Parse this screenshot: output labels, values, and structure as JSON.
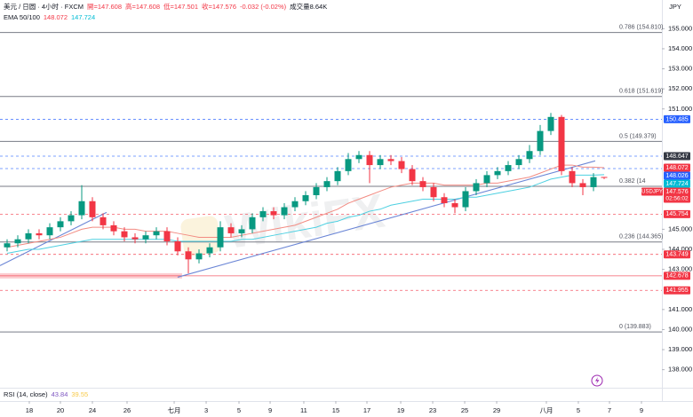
{
  "chart_data": {
    "type": "candlestick",
    "header": {
      "symbol": "美元 / 日圆 · 4小时 · FXCM",
      "stats": [
        "開=147.608",
        "高=147.608",
        "低=147.501",
        "收=147.576",
        "-0.032 (-0.02%)",
        "成交量8.64K"
      ]
    },
    "indicator_label": "EMA 50/100",
    "axis_unit": "JPY",
    "countdown": "02:56:02",
    "symbol_tag": "USDJPY",
    "watermark": "WikiFX",
    "rsi": {
      "label": "RSI (14, close)",
      "values": [
        43.84,
        39.55
      ],
      "colors": [
        "#7e57c2",
        "#f7c948"
      ]
    },
    "up_color": "#089981",
    "down_color": "#f23645",
    "candles": {
      "x": [
        0,
        1,
        2,
        3,
        4,
        5,
        6,
        7,
        8,
        9,
        10,
        11,
        12,
        13,
        14,
        15,
        16,
        17,
        18,
        19,
        20,
        21,
        22,
        23,
        24,
        25,
        26,
        27,
        28,
        29,
        30,
        31,
        32,
        33,
        34,
        35,
        36,
        37,
        38,
        39,
        40,
        41,
        42,
        43,
        44,
        45,
        46,
        47,
        48,
        49,
        50,
        51,
        52,
        53,
        54,
        55,
        56
      ],
      "open": [
        144.1,
        144.3,
        144.5,
        144.8,
        144.7,
        145.1,
        145.4,
        145.7,
        146.4,
        145.6,
        145.2,
        144.9,
        144.6,
        144.5,
        144.7,
        144.9,
        144.4,
        143.9,
        143.5,
        143.8,
        144.1,
        145.1,
        144.8,
        145.0,
        145.6,
        145.9,
        145.7,
        146.1,
        146.4,
        146.7,
        147.1,
        147.4,
        147.9,
        148.5,
        148.7,
        148.2,
        148.5,
        148.4,
        148.0,
        147.4,
        147.1,
        146.6,
        146.3,
        146.1,
        146.9,
        147.3,
        147.7,
        147.9,
        148.2,
        148.5,
        148.9,
        149.9,
        150.6,
        147.9,
        147.3,
        147.1,
        147.608
      ],
      "high": [
        144.5,
        144.7,
        145.0,
        145.0,
        145.3,
        145.6,
        145.9,
        147.2,
        146.6,
        145.8,
        145.4,
        145.1,
        144.8,
        144.9,
        145.1,
        145.1,
        144.6,
        144.1,
        144.0,
        144.3,
        145.4,
        145.3,
        145.2,
        145.8,
        146.1,
        146.1,
        146.3,
        146.6,
        146.9,
        147.3,
        147.6,
        148.1,
        148.8,
        148.9,
        148.9,
        148.7,
        148.7,
        148.6,
        148.2,
        147.6,
        147.3,
        146.8,
        146.5,
        147.1,
        147.5,
        147.9,
        148.1,
        148.4,
        148.7,
        149.2,
        150.2,
        150.8,
        150.7,
        148.1,
        147.5,
        147.8,
        147.608
      ],
      "low": [
        143.9,
        144.1,
        144.3,
        144.5,
        144.5,
        144.9,
        145.2,
        145.5,
        145.4,
        145.0,
        144.7,
        144.4,
        144.3,
        144.3,
        144.5,
        144.2,
        143.7,
        142.8,
        143.3,
        143.6,
        143.9,
        144.6,
        144.6,
        144.8,
        145.4,
        145.5,
        145.5,
        145.9,
        146.2,
        146.5,
        146.9,
        147.2,
        147.7,
        148.3,
        147.3,
        148.0,
        148.2,
        147.8,
        147.2,
        146.9,
        146.4,
        146.1,
        145.8,
        145.9,
        146.7,
        147.1,
        147.5,
        147.7,
        148.0,
        148.3,
        148.7,
        149.7,
        147.7,
        147.1,
        146.7,
        146.9,
        147.501
      ],
      "close": [
        144.3,
        144.5,
        144.8,
        144.7,
        145.1,
        145.4,
        145.7,
        146.4,
        145.6,
        145.2,
        144.9,
        144.6,
        144.5,
        144.7,
        144.9,
        144.4,
        143.9,
        143.5,
        143.8,
        144.1,
        145.1,
        144.8,
        145.0,
        145.6,
        145.9,
        145.7,
        146.1,
        146.4,
        146.7,
        147.1,
        147.4,
        147.9,
        148.5,
        148.7,
        148.2,
        148.5,
        148.4,
        148.0,
        147.4,
        147.1,
        146.6,
        146.3,
        146.1,
        146.9,
        147.3,
        147.7,
        147.9,
        148.2,
        148.5,
        148.9,
        149.9,
        150.6,
        147.9,
        147.3,
        147.1,
        147.6,
        147.576
      ]
    },
    "series": [
      {
        "color": "#f28b82",
        "values": [
          144.1,
          144.2,
          144.3,
          144.4,
          144.5,
          144.6,
          144.8,
          145.0,
          145.1,
          145.1,
          145.1,
          145.0,
          145.0,
          144.9,
          144.9,
          144.9,
          144.8,
          144.7,
          144.6,
          144.6,
          144.6,
          144.6,
          144.7,
          144.8,
          144.9,
          145.0,
          145.1,
          145.2,
          145.4,
          145.6,
          145.8,
          146.0,
          146.3,
          146.5,
          146.7,
          146.9,
          147.1,
          147.2,
          147.3,
          147.3,
          147.3,
          147.2,
          147.2,
          147.2,
          147.2,
          147.3,
          147.3,
          147.4,
          147.5,
          147.6,
          147.8,
          148.0,
          148.2,
          148.2,
          148.1,
          148.1,
          148.072
        ]
      },
      {
        "color": "#4dd0e1",
        "values": [
          143.8,
          143.9,
          144.0,
          144.0,
          144.1,
          144.2,
          144.3,
          144.4,
          144.5,
          144.5,
          144.5,
          144.5,
          144.5,
          144.5,
          144.5,
          144.5,
          144.4,
          144.4,
          144.4,
          144.4,
          144.4,
          144.4,
          144.5,
          144.5,
          144.6,
          144.7,
          144.8,
          144.9,
          145.0,
          145.1,
          145.3,
          145.4,
          145.6,
          145.7,
          145.9,
          146.0,
          146.2,
          146.3,
          146.4,
          146.5,
          146.5,
          146.5,
          146.5,
          146.6,
          146.6,
          146.7,
          146.8,
          146.9,
          147.0,
          147.1,
          147.3,
          147.5,
          147.6,
          147.7,
          147.7,
          147.7,
          147.724
        ]
      }
    ],
    "fib_levels": [
      {
        "value": 154.81,
        "label": "0.786 (154.810)"
      },
      {
        "value": 151.619,
        "label": "0.618 (151.619)"
      },
      {
        "value": 149.379,
        "label": "0.5 (149.379)"
      },
      {
        "value": 147.14,
        "label": "0.382 (14"
      },
      {
        "value": 144.365,
        "label": "0.236 (144.365)"
      },
      {
        "value": 139.883,
        "label": "0 (139.883)"
      }
    ],
    "price_lines": [
      {
        "value": 150.485,
        "color": "#2962ff",
        "dash": true,
        "band": false
      },
      {
        "value": 148.647,
        "color": "#2962ff",
        "dash": true,
        "band": false,
        "label_color": "#363a45"
      },
      {
        "value": 148.026,
        "color": "#2962ff",
        "dash": true,
        "band": false
      },
      {
        "value": 145.754,
        "color": "#f23645",
        "dash": true,
        "band": false
      },
      {
        "value": 143.749,
        "color": "#f23645",
        "dash": true,
        "band": false
      },
      {
        "value": 142.678,
        "color": "#f23645",
        "dash": false,
        "band": true
      },
      {
        "value": 141.955,
        "color": "#f23645",
        "dash": true,
        "band": false
      }
    ],
    "trendlines": [
      {
        "color": "#6b86d6",
        "x": [
          -0.67,
          9.33
        ],
        "y": [
          143.19,
          145.84
        ]
      },
      {
        "color": "#6b86d6",
        "x": [
          15.99,
          55.16
        ],
        "y": [
          142.61,
          148.41
        ]
      }
    ],
    "xlim": [
      -0.667,
      61.417
    ],
    "ylim": [
      137.1,
      155.9
    ],
    "yticks": [
      {
        "value": 155,
        "label": "155.000"
      },
      {
        "value": 154,
        "label": "154.000"
      },
      {
        "value": 153,
        "label": "153.000"
      },
      {
        "value": 152,
        "label": "152.000"
      },
      {
        "value": 151,
        "label": "151.000"
      },
      {
        "value": 145,
        "label": "145.000"
      },
      {
        "value": 144,
        "label": "144.000"
      },
      {
        "value": 143,
        "label": "143.000"
      },
      {
        "value": 141,
        "label": "141.000"
      },
      {
        "value": 140,
        "label": "140.000"
      },
      {
        "value": 139,
        "label": "139.000"
      },
      {
        "value": 138,
        "label": "138.000"
      }
    ],
    "xticks": [
      {
        "value": 2.08,
        "label": "18"
      },
      {
        "value": 5,
        "label": "20"
      },
      {
        "value": 8,
        "label": "24"
      },
      {
        "value": 11.25,
        "label": "26"
      },
      {
        "value": 15.67,
        "label": "七月"
      },
      {
        "value": 18.67,
        "label": "3"
      },
      {
        "value": 21.75,
        "label": "5"
      },
      {
        "value": 24.67,
        "label": "9"
      },
      {
        "value": 27.83,
        "label": "11"
      },
      {
        "value": 30.83,
        "label": "15"
      },
      {
        "value": 33.75,
        "label": "17"
      },
      {
        "value": 36.92,
        "label": "19"
      },
      {
        "value": 39.92,
        "label": "23"
      },
      {
        "value": 42.92,
        "label": "25"
      },
      {
        "value": 45.92,
        "label": "29"
      },
      {
        "value": 50.58,
        "label": "八月"
      },
      {
        "value": 53.58,
        "label": "5"
      },
      {
        "value": 56.5,
        "label": "7"
      },
      {
        "value": 59.5,
        "label": "9"
      }
    ]
  }
}
